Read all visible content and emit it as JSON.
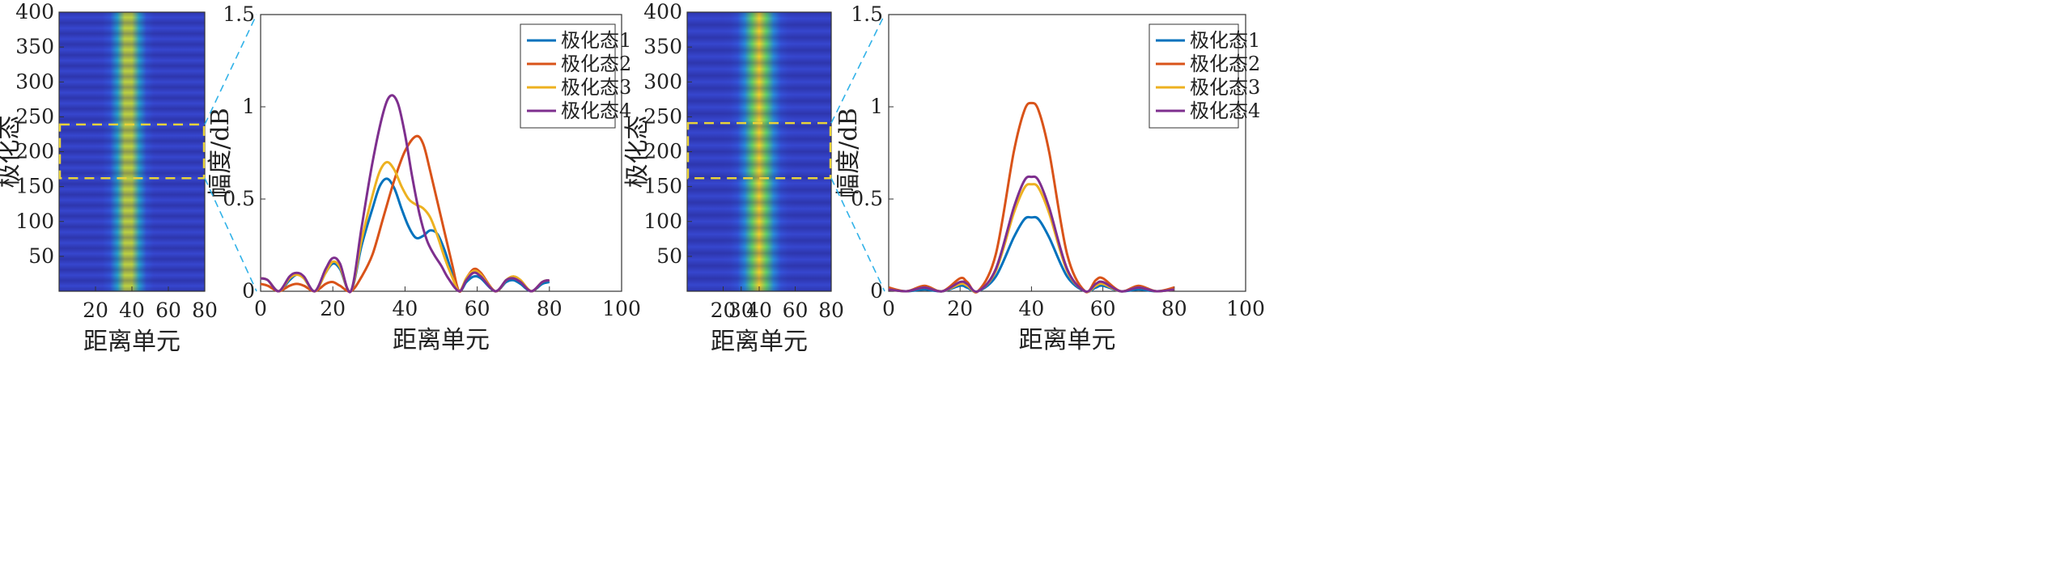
{
  "chart_data": [
    {
      "type": "heatmap",
      "panel": "left-heatmap",
      "xlabel": "距离单元",
      "ylabel": "极化态",
      "xlim": [
        0,
        80
      ],
      "ylim": [
        0,
        400
      ],
      "xticks": [
        "20",
        "40",
        "60",
        "80"
      ],
      "yticks": [
        "50",
        "100",
        "150",
        "200",
        "250",
        "300",
        "350",
        "400"
      ],
      "peak_center_range_cell": 38,
      "highlight_box_ylim": [
        162,
        239
      ],
      "colormap": [
        "#3b2bb8",
        "#2f6ff0",
        "#22b7c0",
        "#5fd16b",
        "#f6d12c"
      ]
    },
    {
      "type": "line",
      "panel": "left-lines",
      "xlabel": "距离单元",
      "ylabel": "幅度/dB",
      "xlim": [
        0,
        100
      ],
      "ylim": [
        0,
        1.5
      ],
      "xticks": [
        "0",
        "20",
        "40",
        "60",
        "80",
        "100"
      ],
      "yticks": [
        "0",
        "0.5",
        "1",
        "1.5"
      ],
      "legend_position": "top-right",
      "grid": false,
      "series": [
        {
          "name": "极化态1",
          "color": "#0072BD",
          "points": [
            [
              0,
              0.07
            ],
            [
              2,
              0.06
            ],
            [
              5,
              0.0
            ],
            [
              8,
              0.06
            ],
            [
              10,
              0.09
            ],
            [
              12,
              0.07
            ],
            [
              15,
              0.0
            ],
            [
              18,
              0.1
            ],
            [
              20,
              0.15
            ],
            [
              22,
              0.12
            ],
            [
              25,
              0.0
            ],
            [
              28,
              0.25
            ],
            [
              31,
              0.45
            ],
            [
              33,
              0.57
            ],
            [
              35,
              0.61
            ],
            [
              37,
              0.56
            ],
            [
              39,
              0.45
            ],
            [
              41,
              0.35
            ],
            [
              43,
              0.29
            ],
            [
              45,
              0.3
            ],
            [
              47,
              0.33
            ],
            [
              49,
              0.31
            ],
            [
              51,
              0.22
            ],
            [
              53,
              0.1
            ],
            [
              55,
              0.0
            ],
            [
              57,
              0.05
            ],
            [
              59,
              0.08
            ],
            [
              61,
              0.07
            ],
            [
              65,
              0.0
            ],
            [
              68,
              0.05
            ],
            [
              70,
              0.06
            ],
            [
              72,
              0.04
            ],
            [
              75,
              0.0
            ],
            [
              78,
              0.04
            ],
            [
              80,
              0.05
            ]
          ]
        },
        {
          "name": "极化态2",
          "color": "#D95319",
          "points": [
            [
              0,
              0.04
            ],
            [
              2,
              0.03
            ],
            [
              5,
              0.0
            ],
            [
              8,
              0.03
            ],
            [
              10,
              0.04
            ],
            [
              12,
              0.03
            ],
            [
              15,
              0.0
            ],
            [
              18,
              0.04
            ],
            [
              20,
              0.05
            ],
            [
              22,
              0.03
            ],
            [
              25,
              0.0
            ],
            [
              28,
              0.08
            ],
            [
              31,
              0.2
            ],
            [
              34,
              0.4
            ],
            [
              37,
              0.6
            ],
            [
              40,
              0.76
            ],
            [
              43,
              0.84
            ],
            [
              45,
              0.8
            ],
            [
              47,
              0.65
            ],
            [
              50,
              0.4
            ],
            [
              53,
              0.15
            ],
            [
              55,
              0.0
            ],
            [
              57,
              0.07
            ],
            [
              59,
              0.12
            ],
            [
              61,
              0.1
            ],
            [
              65,
              0.0
            ],
            [
              68,
              0.06
            ],
            [
              70,
              0.08
            ],
            [
              72,
              0.06
            ],
            [
              75,
              0.0
            ],
            [
              78,
              0.05
            ],
            [
              80,
              0.06
            ]
          ]
        },
        {
          "name": "极化态3",
          "color": "#EDB120",
          "points": [
            [
              0,
              0.07
            ],
            [
              2,
              0.06
            ],
            [
              5,
              0.0
            ],
            [
              8,
              0.07
            ],
            [
              10,
              0.09
            ],
            [
              12,
              0.07
            ],
            [
              15,
              0.0
            ],
            [
              18,
              0.1
            ],
            [
              20,
              0.16
            ],
            [
              22,
              0.13
            ],
            [
              25,
              0.0
            ],
            [
              28,
              0.28
            ],
            [
              31,
              0.52
            ],
            [
              33,
              0.65
            ],
            [
              35,
              0.7
            ],
            [
              37,
              0.66
            ],
            [
              39,
              0.57
            ],
            [
              41,
              0.5
            ],
            [
              43,
              0.47
            ],
            [
              45,
              0.45
            ],
            [
              47,
              0.4
            ],
            [
              49,
              0.3
            ],
            [
              51,
              0.18
            ],
            [
              53,
              0.08
            ],
            [
              55,
              0.0
            ],
            [
              57,
              0.07
            ],
            [
              59,
              0.11
            ],
            [
              61,
              0.09
            ],
            [
              65,
              0.0
            ],
            [
              68,
              0.06
            ],
            [
              70,
              0.08
            ],
            [
              72,
              0.06
            ],
            [
              75,
              0.0
            ],
            [
              78,
              0.05
            ],
            [
              80,
              0.06
            ]
          ]
        },
        {
          "name": "极化态4",
          "color": "#7E2F8E",
          "points": [
            [
              0,
              0.07
            ],
            [
              2,
              0.06
            ],
            [
              5,
              0.0
            ],
            [
              8,
              0.08
            ],
            [
              10,
              0.1
            ],
            [
              12,
              0.08
            ],
            [
              15,
              0.0
            ],
            [
              18,
              0.12
            ],
            [
              20,
              0.18
            ],
            [
              22,
              0.15
            ],
            [
              25,
              0.0
            ],
            [
              28,
              0.35
            ],
            [
              31,
              0.7
            ],
            [
              34,
              0.97
            ],
            [
              36,
              1.06
            ],
            [
              38,
              1.02
            ],
            [
              40,
              0.85
            ],
            [
              42,
              0.62
            ],
            [
              44,
              0.42
            ],
            [
              46,
              0.28
            ],
            [
              48,
              0.2
            ],
            [
              50,
              0.14
            ],
            [
              52,
              0.07
            ],
            [
              55,
              0.0
            ],
            [
              57,
              0.06
            ],
            [
              59,
              0.1
            ],
            [
              61,
              0.08
            ],
            [
              65,
              0.0
            ],
            [
              68,
              0.06
            ],
            [
              70,
              0.07
            ],
            [
              72,
              0.05
            ],
            [
              75,
              0.0
            ],
            [
              78,
              0.05
            ],
            [
              80,
              0.06
            ]
          ]
        }
      ]
    },
    {
      "type": "heatmap",
      "panel": "right-heatmap",
      "xlabel": "距离单元",
      "ylabel": "极化态",
      "xlim": [
        0,
        80
      ],
      "ylim": [
        0,
        400
      ],
      "xticks": [
        "20",
        "30",
        "40",
        "60",
        "80"
      ],
      "yticks": [
        "50",
        "100",
        "150",
        "200",
        "250",
        "300",
        "350",
        "400"
      ],
      "peak_center_range_cell": 40,
      "highlight_box_ylim": [
        162,
        241
      ],
      "colormap": [
        "#3b2bb8",
        "#2f6ff0",
        "#22b7c0",
        "#5fd16b",
        "#f6d12c"
      ]
    },
    {
      "type": "line",
      "panel": "right-lines",
      "xlabel": "距离单元",
      "ylabel": "幅度/dB",
      "xlim": [
        0,
        100
      ],
      "ylim": [
        0,
        1.5
      ],
      "xticks": [
        "0",
        "20",
        "40",
        "60",
        "80",
        "100"
      ],
      "yticks": [
        "0",
        "0.5",
        "1",
        "1.5"
      ],
      "legend_position": "top-right",
      "grid": false,
      "series": [
        {
          "name": "极化态1",
          "color": "#0072BD",
          "points": [
            [
              0,
              0.01
            ],
            [
              5,
              0.0
            ],
            [
              10,
              0.01
            ],
            [
              15,
              0.0
            ],
            [
              20,
              0.03
            ],
            [
              22,
              0.02
            ],
            [
              25,
              0.0
            ],
            [
              30,
              0.08
            ],
            [
              35,
              0.29
            ],
            [
              38,
              0.39
            ],
            [
              40,
              0.4
            ],
            [
              42,
              0.39
            ],
            [
              45,
              0.29
            ],
            [
              50,
              0.08
            ],
            [
              55,
              0.0
            ],
            [
              58,
              0.02
            ],
            [
              60,
              0.03
            ],
            [
              65,
              0.0
            ],
            [
              70,
              0.01
            ],
            [
              75,
              0.0
            ],
            [
              80,
              0.01
            ]
          ]
        },
        {
          "name": "极化态2",
          "color": "#D95319",
          "points": [
            [
              0,
              0.02
            ],
            [
              5,
              0.0
            ],
            [
              10,
              0.03
            ],
            [
              15,
              0.0
            ],
            [
              20,
              0.07
            ],
            [
              22,
              0.05
            ],
            [
              25,
              0.0
            ],
            [
              30,
              0.2
            ],
            [
              35,
              0.75
            ],
            [
              38,
              0.98
            ],
            [
              40,
              1.02
            ],
            [
              42,
              0.98
            ],
            [
              45,
              0.75
            ],
            [
              50,
              0.2
            ],
            [
              55,
              0.0
            ],
            [
              58,
              0.06
            ],
            [
              60,
              0.07
            ],
            [
              65,
              0.0
            ],
            [
              70,
              0.03
            ],
            [
              75,
              0.0
            ],
            [
              80,
              0.02
            ]
          ]
        },
        {
          "name": "极化态3",
          "color": "#EDB120",
          "points": [
            [
              0,
              0.01
            ],
            [
              5,
              0.0
            ],
            [
              10,
              0.02
            ],
            [
              15,
              0.0
            ],
            [
              20,
              0.04
            ],
            [
              22,
              0.03
            ],
            [
              25,
              0.0
            ],
            [
              30,
              0.11
            ],
            [
              35,
              0.42
            ],
            [
              38,
              0.56
            ],
            [
              40,
              0.58
            ],
            [
              42,
              0.56
            ],
            [
              45,
              0.42
            ],
            [
              50,
              0.11
            ],
            [
              55,
              0.0
            ],
            [
              58,
              0.03
            ],
            [
              60,
              0.04
            ],
            [
              65,
              0.0
            ],
            [
              70,
              0.02
            ],
            [
              75,
              0.0
            ],
            [
              80,
              0.01
            ]
          ]
        },
        {
          "name": "极化态4",
          "color": "#7E2F8E",
          "points": [
            [
              0,
              0.01
            ],
            [
              5,
              0.0
            ],
            [
              10,
              0.02
            ],
            [
              15,
              0.0
            ],
            [
              20,
              0.05
            ],
            [
              22,
              0.04
            ],
            [
              25,
              0.0
            ],
            [
              30,
              0.12
            ],
            [
              35,
              0.45
            ],
            [
              38,
              0.6
            ],
            [
              40,
              0.62
            ],
            [
              42,
              0.6
            ],
            [
              45,
              0.45
            ],
            [
              50,
              0.12
            ],
            [
              55,
              0.0
            ],
            [
              58,
              0.04
            ],
            [
              60,
              0.05
            ],
            [
              65,
              0.0
            ],
            [
              70,
              0.02
            ],
            [
              75,
              0.0
            ],
            [
              80,
              0.01
            ]
          ]
        }
      ]
    }
  ]
}
